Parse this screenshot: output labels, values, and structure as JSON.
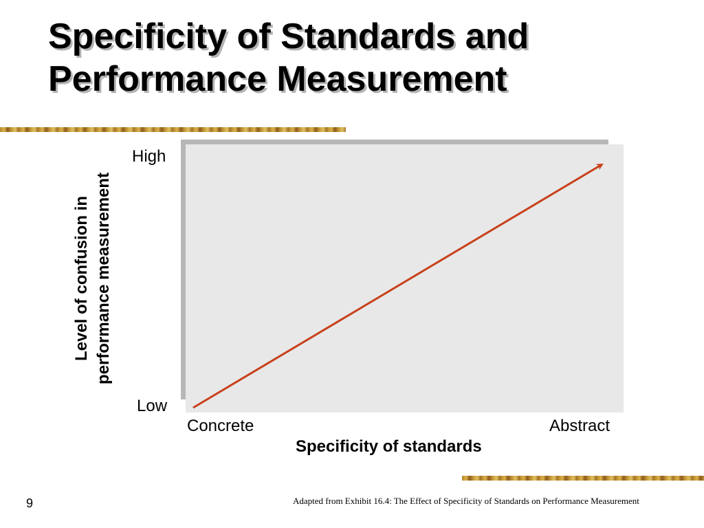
{
  "slide": {
    "title_line1": "Specificity of Standards and",
    "title_line2": "Performance Measurement",
    "number": "9",
    "caption": "Adapted from Exhibit 16.4: The Effect of Specificity of Standards on Performance Measurement"
  },
  "diagram": {
    "y_axis_label_line1": "Level of confusion in",
    "y_axis_label_line2": "performance measurement",
    "y_high_label": "High",
    "y_low_label": "Low",
    "x_axis_label": "Specificity of standards",
    "x_left_label": "Concrete",
    "x_right_label": "Abstract",
    "trend": "increasing",
    "arrow_color": "#c8401a",
    "plot_background": "#e8e8e8"
  }
}
